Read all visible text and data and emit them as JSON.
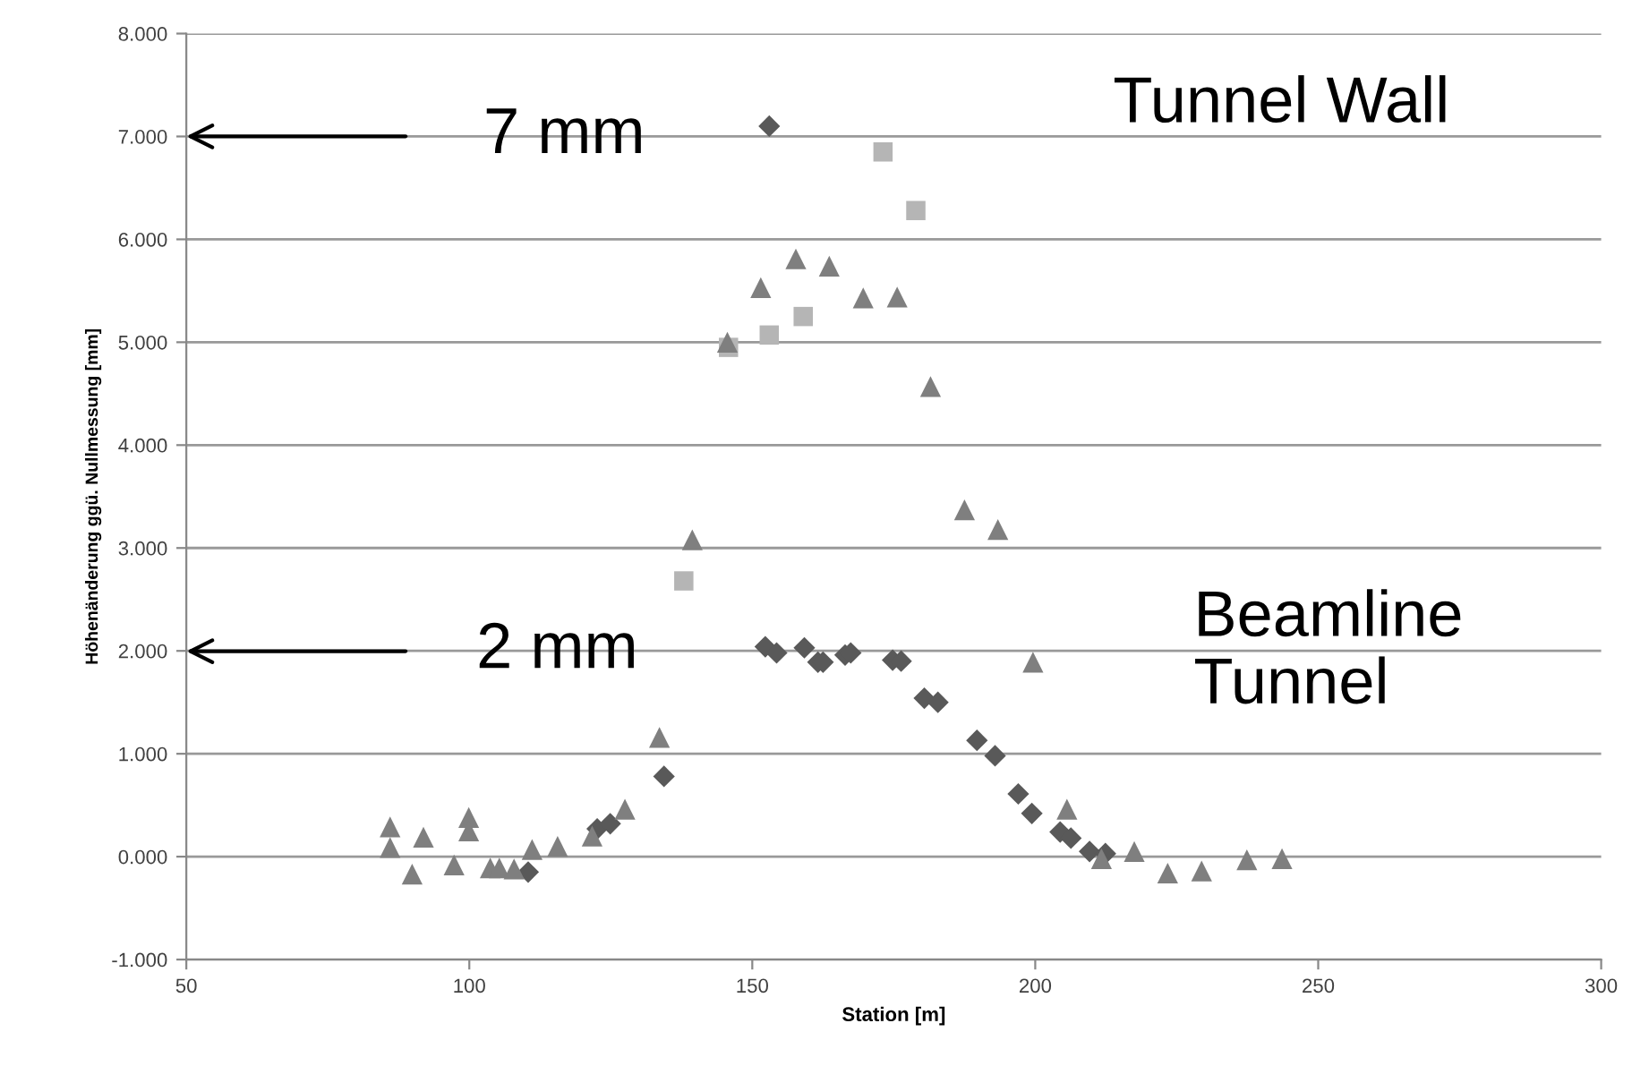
{
  "chart_data": {
    "type": "scatter",
    "xlabel": "Station [m]",
    "ylabel": "Höhenänderung ggü. Nullmessung [mm]",
    "series": [
      {
        "color": "#595959",
        "marker": "diamond",
        "x": [
          153.0,
          110.4,
          122.6,
          124.9,
          134.4,
          152.3,
          154.3,
          159.2,
          161.6,
          162.5,
          166.4,
          167.4,
          174.8,
          176.3,
          180.4,
          182.8,
          189.7,
          192.9,
          197.0,
          199.4,
          204.4,
          206.3,
          209.6,
          212.4
        ],
        "values": [
          7.1,
          -0.15,
          0.27,
          0.32,
          0.78,
          2.04,
          1.98,
          2.03,
          1.89,
          1.89,
          1.96,
          1.98,
          1.91,
          1.9,
          1.54,
          1.5,
          1.13,
          0.98,
          0.61,
          0.42,
          0.24,
          0.18,
          0.05,
          0.03
        ]
      },
      {
        "color": "#b5b5b5",
        "marker": "square",
        "x": [
          137.9,
          145.8,
          153.0,
          159.0,
          173.1,
          178.9
        ],
        "values": [
          2.68,
          4.95,
          5.07,
          5.25,
          6.85,
          6.28
        ]
      },
      {
        "color": "#7f7f7f",
        "marker": "triangle",
        "x": [
          86.0,
          86.0,
          89.9,
          91.9,
          97.3,
          99.9,
          99.9,
          103.7,
          105.3,
          107.9,
          111.1,
          115.6,
          121.7,
          127.5,
          133.6,
          139.4,
          145.6,
          151.5,
          157.7,
          163.6,
          169.6,
          175.6,
          181.5,
          187.5,
          193.4,
          199.6,
          205.6,
          211.7,
          217.5,
          223.4,
          229.4,
          237.4,
          243.6
        ],
        "values": [
          0.29,
          0.09,
          -0.17,
          0.19,
          -0.08,
          0.38,
          0.25,
          -0.11,
          -0.11,
          -0.12,
          0.07,
          0.1,
          0.2,
          0.46,
          1.16,
          3.08,
          5.0,
          5.53,
          5.81,
          5.74,
          5.43,
          5.44,
          4.57,
          3.37,
          3.18,
          1.89,
          0.46,
          -0.02,
          0.05,
          -0.16,
          -0.14,
          -0.03,
          -0.02
        ]
      }
    ],
    "xlim": [
      50,
      300
    ],
    "xticks": [
      50,
      100,
      150,
      200,
      250,
      300
    ],
    "ylim": [
      -1,
      8
    ],
    "yticks": [
      {
        "value": -1,
        "label": "-1.000"
      },
      {
        "value": 0,
        "label": "0.000"
      },
      {
        "value": 1,
        "label": "1.000"
      },
      {
        "value": 2,
        "label": "2.000"
      },
      {
        "value": 3,
        "label": "3.000"
      },
      {
        "value": 4,
        "label": "4.000"
      },
      {
        "value": 5,
        "label": "5.000"
      },
      {
        "value": 6,
        "label": "6.000"
      },
      {
        "value": 7,
        "label": "7.000"
      },
      {
        "value": 8,
        "label": "8.000"
      }
    ],
    "grid": "y",
    "annotations": [
      "7 mm",
      "2 mm",
      "Tunnel Wall",
      "Beamline\nTunnel"
    ]
  }
}
